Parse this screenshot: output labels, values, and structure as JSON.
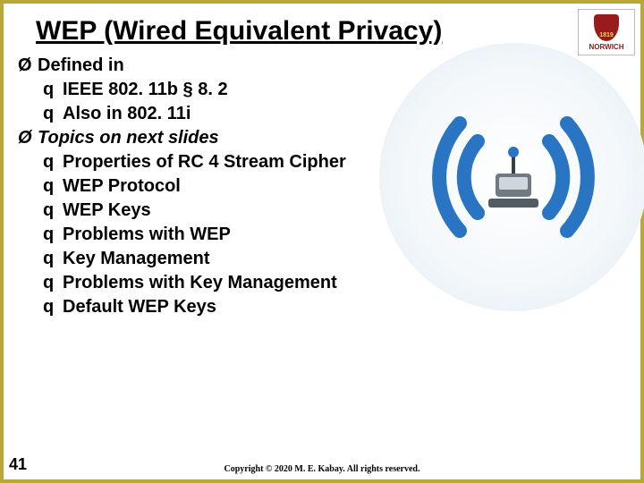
{
  "title": "WEP (Wired Equivalent Privacy)",
  "logo": {
    "text": "NORWICH",
    "shield_color": "#9a1b1b"
  },
  "bullets": {
    "l1_markers": "Ø",
    "l2_markers": "q",
    "items": [
      {
        "text": "Defined in",
        "italic": false,
        "children": [
          "IEEE 802. 11b § 8. 2",
          "Also in 802. 11i"
        ]
      },
      {
        "text": "Topics on next slides",
        "italic": true,
        "children": [
          "Properties of RC 4 Stream Cipher",
          "WEP Protocol",
          "WEP Keys",
          "Problems with WEP",
          "Key Management",
          "Problems with Key Management",
          "Default WEP Keys"
        ]
      }
    ]
  },
  "illustration": {
    "wave_color": "#2a74c4",
    "device_body": "#6f7a83",
    "device_face": "#cfd6dc",
    "antenna_tip": "#2a74c4"
  },
  "slide_number": "41",
  "copyright": "Copyright © 2020 M. E. Kabay.  All rights reserved."
}
